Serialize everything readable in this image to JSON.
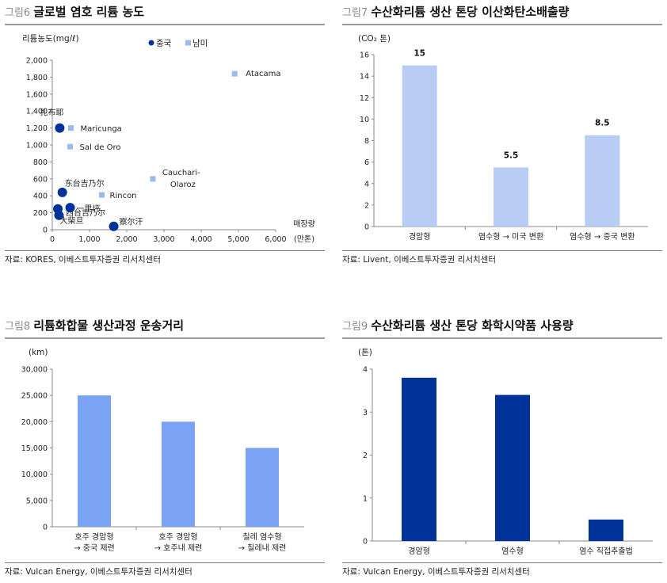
{
  "charts": [
    {
      "id": "fig6",
      "number": "그림6",
      "title": "글로벌 염호 리튬 농도",
      "source": "자료: KORES, 이베스트투자증권 리서치센터",
      "chart_data": {
        "type": "scatter",
        "ylabel": "리튬농도(mg/ℓ)",
        "xlabel": "매장량 (만톤)",
        "xlim": [
          0,
          6000
        ],
        "ylim": [
          0,
          2000
        ],
        "xticks": [
          0,
          1000,
          2000,
          3000,
          4000,
          5000,
          6000
        ],
        "xtick_labels": [
          "0",
          "1,000",
          "2,000",
          "3,000",
          "4,000",
          "5,000",
          "6,000"
        ],
        "yticks": [
          0,
          200,
          400,
          600,
          800,
          1000,
          1200,
          1400,
          1600,
          1800,
          2000
        ],
        "ytick_labels": [
          "0",
          "200",
          "400",
          "600",
          "800",
          "1,000",
          "1,200",
          "1,400",
          "1,600",
          "1,800",
          "2,000"
        ],
        "legend_position": "top",
        "series": [
          {
            "name": "중국",
            "color": "#003399",
            "marker": "circle",
            "points": [
              {
                "label": "扎布耶",
                "x": 200,
                "y": 1200
              },
              {
                "label": "东台吉乃尔",
                "x": 270,
                "y": 440
              },
              {
                "label": "西台吉乃尔",
                "x": 150,
                "y": 245
              },
              {
                "label": "一里坪",
                "x": 480,
                "y": 260
              },
              {
                "label": "大柴旦",
                "x": 180,
                "y": 170
              },
              {
                "label": "察尔汗",
                "x": 1650,
                "y": 40
              }
            ]
          },
          {
            "name": "남미",
            "color": "#99bbee",
            "marker": "square",
            "points": [
              {
                "label": "Atacama",
                "x": 4900,
                "y": 1840
              },
              {
                "label": "Maricunga",
                "x": 500,
                "y": 1200
              },
              {
                "label": "Sal de Oro",
                "x": 480,
                "y": 980
              },
              {
                "label": "Cauchari-Olaroz",
                "x": 2700,
                "y": 600
              },
              {
                "label": "Rincon",
                "x": 1330,
                "y": 410
              }
            ]
          }
        ]
      }
    },
    {
      "id": "fig7",
      "number": "그림7",
      "title": "수산화리튬 생산 톤당 이산화탄소배출량",
      "source": "자료: Livent, 이베스트투자증권 리서치센터",
      "chart_data": {
        "type": "bar",
        "ylabel": "(CO₂ 톤)",
        "categories": [
          "경암형",
          "염수형 →  미국 변환",
          "염수형 → 중국 변환"
        ],
        "values": [
          15,
          5.5,
          8.5
        ],
        "data_labels": [
          "15",
          "5.5",
          "8.5"
        ],
        "ylim": [
          0,
          16
        ],
        "yticks": [
          0,
          2,
          4,
          6,
          8,
          10,
          12,
          14,
          16
        ],
        "ytick_labels": [
          "0",
          "2",
          "4",
          "6",
          "8",
          "10",
          "12",
          "14",
          "16"
        ],
        "color": "#b8ccf4"
      }
    },
    {
      "id": "fig8",
      "number": "그림8",
      "title": "리튬화합물 생산과정 운송거리",
      "source": "자료: Vulcan Energy, 이베스트투자증권 리서치센터",
      "chart_data": {
        "type": "bar",
        "ylabel": "(km)",
        "categories": [
          "호주 경암형\n→ 중국 제련",
          "호주 경암형\n→ 호주내  제련",
          "칠레 염수형\n→ 칠레내 제련"
        ],
        "values": [
          25000,
          20000,
          15000
        ],
        "ylim": [
          0,
          30000
        ],
        "yticks": [
          0,
          5000,
          10000,
          15000,
          20000,
          25000,
          30000
        ],
        "ytick_labels": [
          "0",
          "5,000",
          "10,000",
          "15,000",
          "20,000",
          "25,000",
          "30,000"
        ],
        "color": "#7ba3f4"
      }
    },
    {
      "id": "fig9",
      "number": "그림9",
      "title": "수산화리튬 생산 톤당 화학시약품 사용량",
      "source": "자료: Vulcan Energy, 이베스트투자증권 리서치센터",
      "chart_data": {
        "type": "bar",
        "ylabel": "(톤)",
        "categories": [
          "경암형",
          "염수형",
          "염수 직접추출법"
        ],
        "values": [
          3.8,
          3.4,
          0.5
        ],
        "ylim": [
          0,
          4
        ],
        "yticks": [
          0,
          1,
          2,
          3,
          4
        ],
        "ytick_labels": [
          "0",
          "1",
          "2",
          "3",
          "4"
        ],
        "color": "#003399"
      }
    }
  ]
}
